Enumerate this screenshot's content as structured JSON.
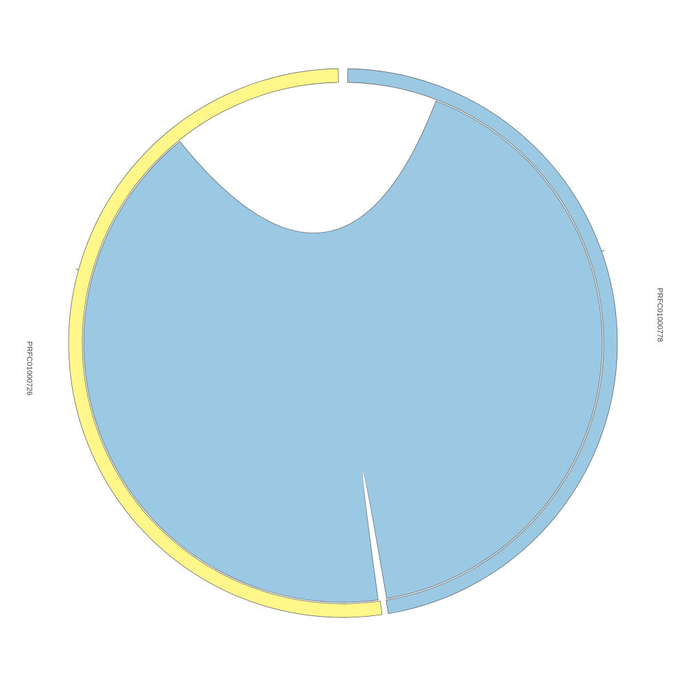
{
  "chart_data": {
    "type": "chord",
    "sectors": [
      {
        "name": "PRFC01000778",
        "color": "#9bc8e2"
      },
      {
        "name": "PRFC01000726",
        "color": "#fff78a"
      }
    ],
    "links": [
      {
        "from": "PRFC01000778",
        "to": "PRFC01000726",
        "color": "#9bc8e2"
      }
    ]
  }
}
